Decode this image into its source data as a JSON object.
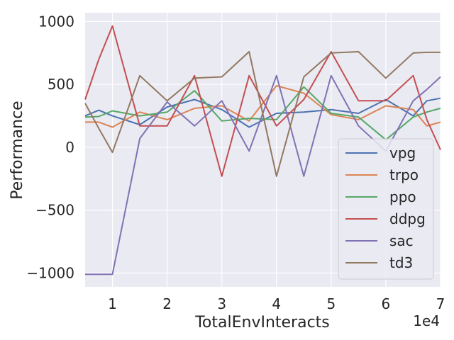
{
  "chart_data": {
    "type": "line",
    "xlabel": "TotalEnvInteracts",
    "ylabel": "Performance",
    "x_offset_label": "1e4",
    "xlim": [
      0.5,
      7.0
    ],
    "ylim": [
      -1110,
      1070
    ],
    "xticks": [
      1,
      2,
      3,
      4,
      5,
      6,
      7
    ],
    "xtick_labels": [
      "1",
      "2",
      "3",
      "4",
      "5",
      "6",
      "7"
    ],
    "yticks": [
      -1000,
      -500,
      0,
      500,
      1000
    ],
    "ytick_labels": [
      "−1000",
      "−500",
      "0",
      "500",
      "1000"
    ],
    "grid": true,
    "legend_position": "lower right",
    "x": [
      0.5,
      0.75,
      1.0,
      1.5,
      2.0,
      2.5,
      3.0,
      3.5,
      4.0,
      4.5,
      5.0,
      5.5,
      6.0,
      6.5,
      6.75,
      7.0
    ],
    "series": [
      {
        "name": "vpg",
        "color": "#4c72b0",
        "values": [
          250,
          295,
          250,
          180,
          320,
          380,
          300,
          160,
          270,
          280,
          300,
          270,
          380,
          250,
          370,
          390
        ]
      },
      {
        "name": "trpo",
        "color": "#dd8452",
        "values": [
          200,
          200,
          160,
          280,
          220,
          310,
          330,
          210,
          490,
          430,
          260,
          220,
          330,
          300,
          170,
          200
        ]
      },
      {
        "name": "ppo",
        "color": "#55a868",
        "values": [
          240,
          245,
          290,
          250,
          280,
          450,
          210,
          230,
          220,
          480,
          270,
          240,
          60,
          240,
          280,
          310
        ]
      },
      {
        "name": "ddpg",
        "color": "#c44e52",
        "values": [
          380,
          700,
          965,
          170,
          170,
          570,
          -230,
          570,
          170,
          380,
          760,
          370,
          370,
          570,
          220,
          -20
        ]
      },
      {
        "name": "sac",
        "color": "#8172b3",
        "values": [
          -1010,
          -1010,
          -1010,
          70,
          360,
          170,
          370,
          -30,
          570,
          -230,
          570,
          170,
          -30,
          370,
          460,
          560
        ]
      },
      {
        "name": "td3",
        "color": "#937860",
        "values": [
          350,
          150,
          -40,
          570,
          370,
          550,
          560,
          760,
          -230,
          560,
          750,
          760,
          550,
          750,
          755,
          755
        ]
      }
    ]
  }
}
